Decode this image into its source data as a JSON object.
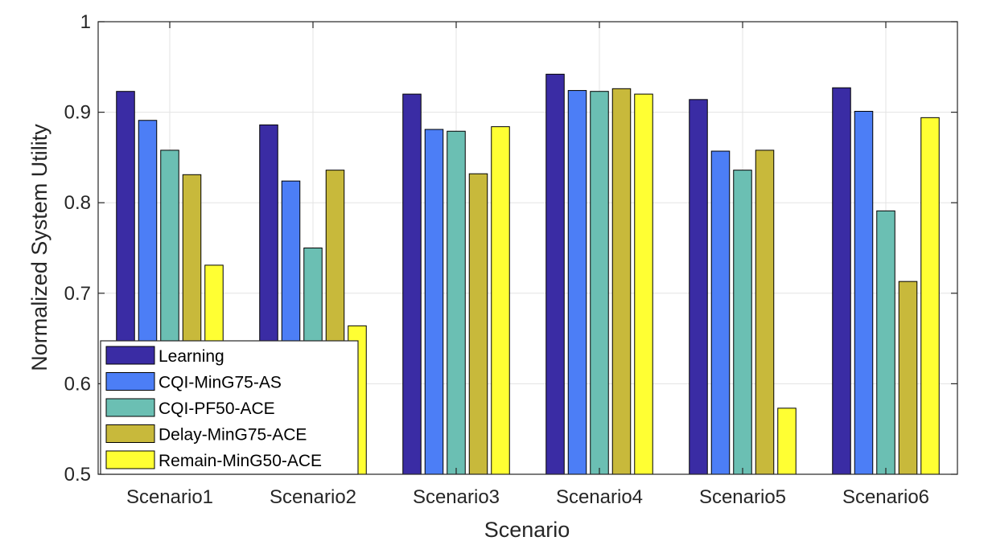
{
  "chart_data": {
    "type": "bar",
    "title": "",
    "xlabel": "Scenario",
    "ylabel": "Normalized System Utility",
    "ylim": [
      0.5,
      1
    ],
    "yticks": [
      0.5,
      0.6,
      0.7,
      0.8,
      0.9,
      1
    ],
    "ytick_labels": [
      "0.5",
      "0.6",
      "0.7",
      "0.8",
      "0.9",
      "1"
    ],
    "grid": true,
    "legend_position": "bottom-left",
    "categories": [
      "Scenario1",
      "Scenario2",
      "Scenario3",
      "Scenario4",
      "Scenario5",
      "Scenario6"
    ],
    "series": [
      {
        "name": "Learning",
        "color": "#3a2ca4",
        "values": [
          0.923,
          0.886,
          0.92,
          0.942,
          0.914,
          0.927
        ]
      },
      {
        "name": "CQI-MinG75-AS",
        "color": "#4c7ef6",
        "values": [
          0.891,
          0.824,
          0.881,
          0.924,
          0.857,
          0.901
        ]
      },
      {
        "name": "CQI-PF50-ACE",
        "color": "#6bbfb3",
        "values": [
          0.858,
          0.75,
          0.879,
          0.923,
          0.836,
          0.791
        ]
      },
      {
        "name": "Delay-MinG75-ACE",
        "color": "#c8b93b",
        "values": [
          0.831,
          0.836,
          0.832,
          0.926,
          0.858,
          0.713
        ]
      },
      {
        "name": "Remain-MinG50-ACE",
        "color": "#ffff33",
        "values": [
          0.731,
          0.664,
          0.884,
          0.92,
          0.573,
          0.894
        ]
      }
    ]
  }
}
